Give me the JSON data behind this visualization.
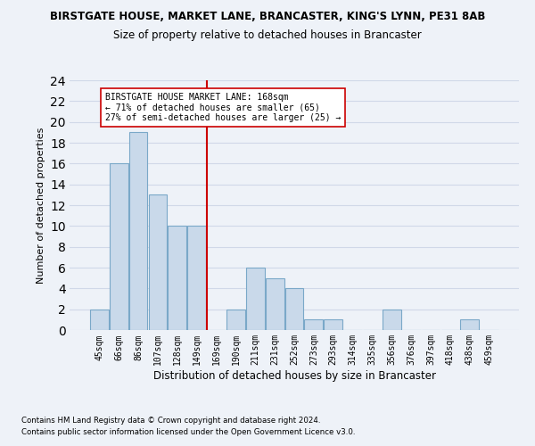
{
  "title1": "BIRSTGATE HOUSE, MARKET LANE, BRANCASTER, KING'S LYNN, PE31 8AB",
  "title2": "Size of property relative to detached houses in Brancaster",
  "xlabel": "Distribution of detached houses by size in Brancaster",
  "ylabel": "Number of detached properties",
  "categories": [
    "45sqm",
    "66sqm",
    "86sqm",
    "107sqm",
    "128sqm",
    "149sqm",
    "169sqm",
    "190sqm",
    "211sqm",
    "231sqm",
    "252sqm",
    "273sqm",
    "293sqm",
    "314sqm",
    "335sqm",
    "356sqm",
    "376sqm",
    "397sqm",
    "418sqm",
    "438sqm",
    "459sqm"
  ],
  "values": [
    2,
    16,
    19,
    13,
    10,
    10,
    0,
    2,
    6,
    5,
    4,
    1,
    1,
    0,
    0,
    2,
    0,
    0,
    0,
    1,
    0
  ],
  "bar_color": "#c9d9ea",
  "bar_edge_color": "#7aa8c8",
  "grid_color": "#d0d8e8",
  "vline_x_index": 6,
  "vline_color": "#cc0000",
  "annotation_text": "BIRSTGATE HOUSE MARKET LANE: 168sqm\n← 71% of detached houses are smaller (65)\n27% of semi-detached houses are larger (25) →",
  "annotation_box_color": "#ffffff",
  "annotation_box_edge": "#cc0000",
  "ylim": [
    0,
    24
  ],
  "yticks": [
    0,
    2,
    4,
    6,
    8,
    10,
    12,
    14,
    16,
    18,
    20,
    22,
    24
  ],
  "footnote1": "Contains HM Land Registry data © Crown copyright and database right 2024.",
  "footnote2": "Contains public sector information licensed under the Open Government Licence v3.0.",
  "bg_color": "#eef2f8"
}
